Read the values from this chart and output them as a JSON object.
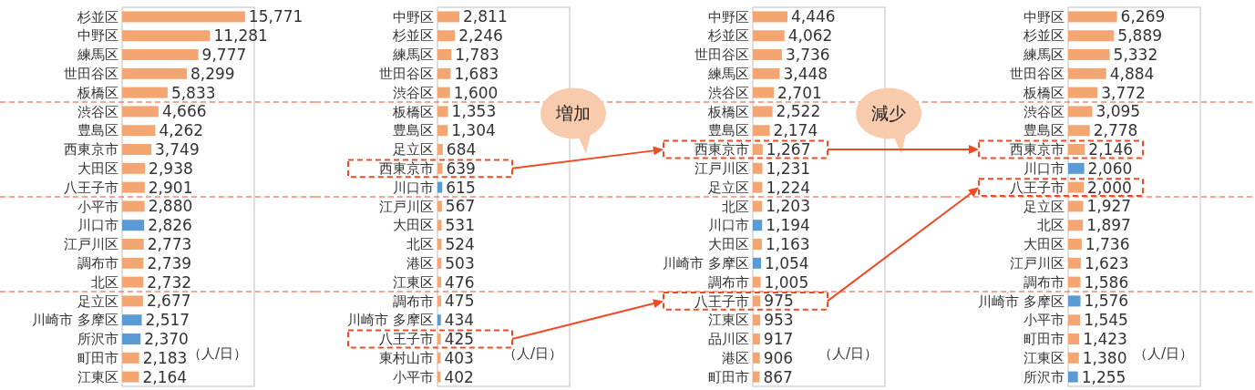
{
  "chart_data": [
    {
      "type": "bar",
      "orientation": "horizontal",
      "categories": [
        "杉並区",
        "中野区",
        "練馬区",
        "世田谷区",
        "板橋区",
        "渋谷区",
        "豊島区",
        "西東京市",
        "大田区",
        "八王子市",
        "小平市",
        "川口市",
        "江戸川区",
        "調布市",
        "北区",
        "足立区",
        "川崎市 多摩区",
        "所沢市",
        "町田市",
        "江東区"
      ],
      "values": [
        15771,
        11281,
        9777,
        8299,
        5833,
        4666,
        4262,
        3749,
        2938,
        2901,
        2880,
        2826,
        2773,
        2739,
        2732,
        2677,
        2517,
        2370,
        2183,
        2164
      ],
      "value_labels": [
        "15,771",
        "11,281",
        "9,777",
        "8,299",
        "5,833",
        "4,666",
        "4,262",
        "3,749",
        "2,938",
        "2,901",
        "2,880",
        "2,826",
        "2,773",
        "2,739",
        "2,732",
        "2,677",
        "2,517",
        "2,370",
        "2,183",
        "2,164"
      ],
      "colors": [
        "#f4a672",
        "#f4a672",
        "#f4a672",
        "#f4a672",
        "#f4a672",
        "#f4a672",
        "#f4a672",
        "#f4a672",
        "#f4a672",
        "#f4a672",
        "#f4a672",
        "#5b9bd5",
        "#f4a672",
        "#f4a672",
        "#f4a672",
        "#f4a672",
        "#5b9bd5",
        "#5b9bd5",
        "#f4a672",
        "#f4a672"
      ],
      "ref_lines": [
        {
          "axis": "y",
          "value": "板橋区",
          "color": "#f04a24",
          "line_style": "dashed"
        },
        {
          "axis": "y",
          "value": "八王子市",
          "color": "#f04a24",
          "line_style": "dashed"
        },
        {
          "axis": "y",
          "value": "北区",
          "color": "#f04a24",
          "line_style": "dashed"
        }
      ],
      "annotations": [
        "（人/日）"
      ]
    },
    {
      "type": "bar",
      "orientation": "horizontal",
      "categories": [
        "中野区",
        "杉並区",
        "練馬区",
        "世田谷区",
        "渋谷区",
        "板橋区",
        "豊島区",
        "足立区",
        "西東京市",
        "川口市",
        "江戸川区",
        "大田区",
        "北区",
        "港区",
        "江東区",
        "調布市",
        "川崎市 多摩区",
        "八王子市",
        "東村山市",
        "小平市"
      ],
      "values": [
        2811,
        2246,
        1783,
        1683,
        1600,
        1353,
        1304,
        684,
        639,
        615,
        567,
        531,
        524,
        503,
        476,
        475,
        434,
        425,
        403,
        402
      ],
      "value_labels": [
        "2,811",
        "2,246",
        "1,783",
        "1,683",
        "1,600",
        "1,353",
        "1,304",
        "684",
        "639",
        "615",
        "567",
        "531",
        "524",
        "503",
        "476",
        "475",
        "434",
        "425",
        "403",
        "402"
      ],
      "colors": [
        "#f4a672",
        "#f4a672",
        "#f4a672",
        "#f4a672",
        "#f4a672",
        "#f4a672",
        "#f4a672",
        "#f4a672",
        "#f4a672",
        "#5b9bd5",
        "#f4a672",
        "#f4a672",
        "#f4a672",
        "#f4a672",
        "#f4a672",
        "#f4a672",
        "#5b9bd5",
        "#f4a672",
        "#f4a672",
        "#f4a672"
      ],
      "ref_lines": [
        {
          "axis": "y",
          "value": "渋谷区",
          "color": "#f04a24",
          "line_style": "dashed"
        },
        {
          "axis": "y",
          "value": "川口市",
          "color": "#f04a24",
          "line_style": "dashed"
        },
        {
          "axis": "y",
          "value": "江東区",
          "color": "#f04a24",
          "line_style": "dashed"
        }
      ],
      "annotations": [
        "（人/日）",
        "増加"
      ]
    },
    {
      "type": "bar",
      "orientation": "horizontal",
      "categories": [
        "中野区",
        "杉並区",
        "世田谷区",
        "練馬区",
        "渋谷区",
        "板橋区",
        "豊島区",
        "西東京市",
        "江戸川区",
        "足立区",
        "北区",
        "川口市",
        "大田区",
        "川崎市 多摩区",
        "調布市",
        "八王子市",
        "江東区",
        "品川区",
        "港区",
        "町田市"
      ],
      "values": [
        4446,
        4062,
        3736,
        3448,
        2701,
        2522,
        2174,
        1267,
        1231,
        1224,
        1203,
        1194,
        1163,
        1054,
        1005,
        975,
        953,
        917,
        906,
        867
      ],
      "value_labels": [
        "4,446",
        "4,062",
        "3,736",
        "3,448",
        "2,701",
        "2,522",
        "2,174",
        "1,267",
        "1,231",
        "1,224",
        "1,203",
        "1,194",
        "1,163",
        "1,054",
        "1,005",
        "975",
        "953",
        "917",
        "906",
        "867"
      ],
      "colors": [
        "#f4a672",
        "#f4a672",
        "#f4a672",
        "#f4a672",
        "#f4a672",
        "#f4a672",
        "#f4a672",
        "#f4a672",
        "#f4a672",
        "#f4a672",
        "#f4a672",
        "#5b9bd5",
        "#f4a672",
        "#5b9bd5",
        "#f4a672",
        "#f4a672",
        "#f4a672",
        "#f4a672",
        "#f4a672",
        "#f4a672"
      ],
      "ref_lines": [
        {
          "axis": "y",
          "value": "渋谷区",
          "color": "#f04a24",
          "line_style": "dashed"
        },
        {
          "axis": "y",
          "value": "足立区",
          "color": "#f04a24",
          "line_style": "dashed"
        },
        {
          "axis": "y",
          "value": "調布市",
          "color": "#f04a24",
          "line_style": "dashed"
        }
      ],
      "annotations": [
        "（人/日）",
        "減少"
      ]
    },
    {
      "type": "bar",
      "orientation": "horizontal",
      "categories": [
        "中野区",
        "杉並区",
        "練馬区",
        "世田谷区",
        "板橋区",
        "渋谷区",
        "豊島区",
        "西東京市",
        "川口市",
        "八王子市",
        "足立区",
        "北区",
        "大田区",
        "江戸川区",
        "調布市",
        "川崎市 多摩区",
        "小平市",
        "町田市",
        "江東区",
        "所沢市"
      ],
      "values": [
        6269,
        5889,
        5332,
        4884,
        3772,
        3095,
        2778,
        2146,
        2060,
        2000,
        1927,
        1897,
        1736,
        1623,
        1586,
        1576,
        1545,
        1423,
        1380,
        1255
      ],
      "value_labels": [
        "6,269",
        "5,889",
        "5,332",
        "4,884",
        "3,772",
        "3,095",
        "2,778",
        "2,146",
        "2,060",
        "2,000",
        "1,927",
        "1,897",
        "1,736",
        "1,623",
        "1,586",
        "1,576",
        "1,545",
        "1,423",
        "1,380",
        "1,255"
      ],
      "colors": [
        "#f4a672",
        "#f4a672",
        "#f4a672",
        "#f4a672",
        "#f4a672",
        "#f4a672",
        "#f4a672",
        "#f4a672",
        "#5b9bd5",
        "#f4a672",
        "#f4a672",
        "#f4a672",
        "#f4a672",
        "#f4a672",
        "#f4a672",
        "#5b9bd5",
        "#f4a672",
        "#f4a672",
        "#f4a672",
        "#5b9bd5"
      ],
      "ref_lines": [
        {
          "axis": "y",
          "value": "板橋区",
          "color": "#f04a24",
          "line_style": "dashed"
        },
        {
          "axis": "y",
          "value": "八王子市",
          "color": "#f04a24",
          "line_style": "dashed"
        },
        {
          "axis": "y",
          "value": "調布市",
          "color": "#f04a24",
          "line_style": "dashed"
        }
      ],
      "annotations": [
        "（人/日）"
      ]
    }
  ]
}
